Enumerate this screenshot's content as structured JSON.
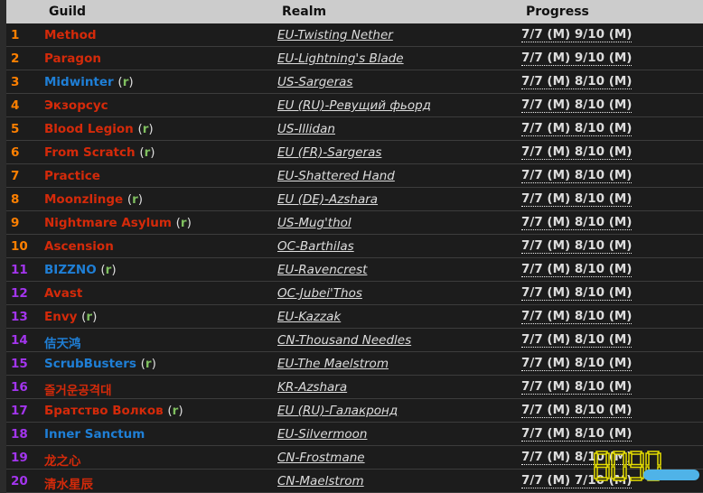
{
  "colors": {
    "rank_top10": "#ff8000",
    "rank_rest": "#a335ee",
    "horde": "#d42a0a",
    "alliance": "#1f7fd6"
  },
  "header": {
    "guild": "Guild",
    "realm": "Realm",
    "progress": "Progress"
  },
  "rows": [
    {
      "rank": "1",
      "guild": "Method",
      "faction": "horde",
      "r": false,
      "realm": "EU-Twisting Nether",
      "progress": "7/7 (M) 9/10 (M)"
    },
    {
      "rank": "2",
      "guild": "Paragon",
      "faction": "horde",
      "r": false,
      "realm": "EU-Lightning's Blade",
      "progress": "7/7 (M) 9/10 (M)"
    },
    {
      "rank": "3",
      "guild": "Midwinter",
      "faction": "alliance",
      "r": true,
      "realm": "US-Sargeras",
      "progress": "7/7 (M) 8/10 (M)"
    },
    {
      "rank": "4",
      "guild": "Экзорсус",
      "faction": "horde",
      "r": false,
      "realm": "EU (RU)-Ревущий фьорд",
      "progress": "7/7 (M) 8/10 (M)"
    },
    {
      "rank": "5",
      "guild": "Blood Legion",
      "faction": "horde",
      "r": true,
      "realm": "US-Illidan",
      "progress": "7/7 (M) 8/10 (M)"
    },
    {
      "rank": "6",
      "guild": "From Scratch",
      "faction": "horde",
      "r": true,
      "realm": "EU (FR)-Sargeras",
      "progress": "7/7 (M) 8/10 (M)"
    },
    {
      "rank": "7",
      "guild": "Practice",
      "faction": "horde",
      "r": false,
      "realm": "EU-Shattered Hand",
      "progress": "7/7 (M) 8/10 (M)"
    },
    {
      "rank": "8",
      "guild": "Moonzlinge",
      "faction": "horde",
      "r": true,
      "realm": "EU (DE)-Azshara",
      "progress": "7/7 (M) 8/10 (M)"
    },
    {
      "rank": "9",
      "guild": "Nightmare Asylum",
      "faction": "horde",
      "r": true,
      "realm": "US-Mug'thol",
      "progress": "7/7 (M) 8/10 (M)"
    },
    {
      "rank": "10",
      "guild": "Ascension",
      "faction": "horde",
      "r": false,
      "realm": "OC-Barthilas",
      "progress": "7/7 (M) 8/10 (M)"
    },
    {
      "rank": "11",
      "guild": "BIZZNO",
      "faction": "alliance",
      "r": true,
      "realm": "EU-Ravencrest",
      "progress": "7/7 (M) 8/10 (M)"
    },
    {
      "rank": "12",
      "guild": "Avast",
      "faction": "horde",
      "r": false,
      "realm": "OC-Jubei'Thos",
      "progress": "7/7 (M) 8/10 (M)"
    },
    {
      "rank": "13",
      "guild": "Envy",
      "faction": "horde",
      "r": true,
      "realm": "EU-Kazzak",
      "progress": "7/7 (M) 8/10 (M)"
    },
    {
      "rank": "14",
      "guild": "佶天鸿",
      "faction": "alliance",
      "r": false,
      "realm": "CN-Thousand Needles",
      "progress": "7/7 (M) 8/10 (M)"
    },
    {
      "rank": "15",
      "guild": "ScrubBusters",
      "faction": "alliance",
      "r": true,
      "realm": "EU-The Maelstrom",
      "progress": "7/7 (M) 8/10 (M)"
    },
    {
      "rank": "16",
      "guild": "즐거운공격대",
      "faction": "horde",
      "r": false,
      "realm": "KR-Azshara",
      "progress": "7/7 (M) 8/10 (M)"
    },
    {
      "rank": "17",
      "guild": "Братство Волков",
      "faction": "horde",
      "r": true,
      "realm": "EU (RU)-Галакронд",
      "progress": "7/7 (M) 8/10 (M)"
    },
    {
      "rank": "18",
      "guild": "Inner Sanctum",
      "faction": "alliance",
      "r": false,
      "realm": "EU-Silvermoon",
      "progress": "7/7 (M) 8/10 (M)"
    },
    {
      "rank": "19",
      "guild": "龙之心",
      "faction": "horde",
      "r": false,
      "realm": "CN-Frostmane",
      "progress": "7/7 (M) 8/10 (M)"
    },
    {
      "rank": "20",
      "guild": "清水星辰",
      "faction": "horde",
      "r": false,
      "realm": "CN-Maelstrom",
      "progress": "7/7 (M) 7/10 (M)"
    }
  ],
  "r_tag": "r",
  "watermark": "8090"
}
